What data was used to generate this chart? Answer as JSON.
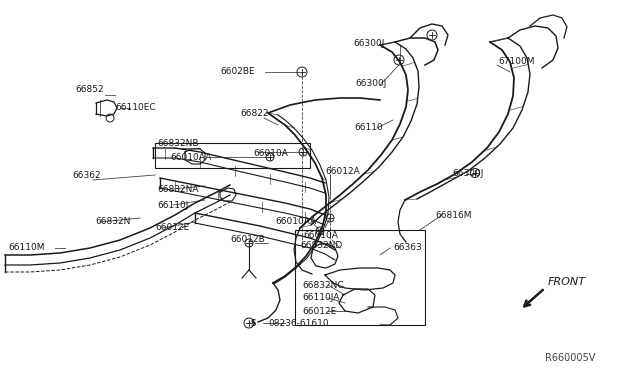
{
  "bg_color": "#ffffff",
  "dc": "#1a1a1a",
  "lc": "#444444",
  "ref_code": "R660005V",
  "front_label": "FRONT",
  "figsize": [
    6.4,
    3.72
  ],
  "dpi": 100,
  "xlim": [
    0,
    640
  ],
  "ylim": [
    0,
    372
  ]
}
